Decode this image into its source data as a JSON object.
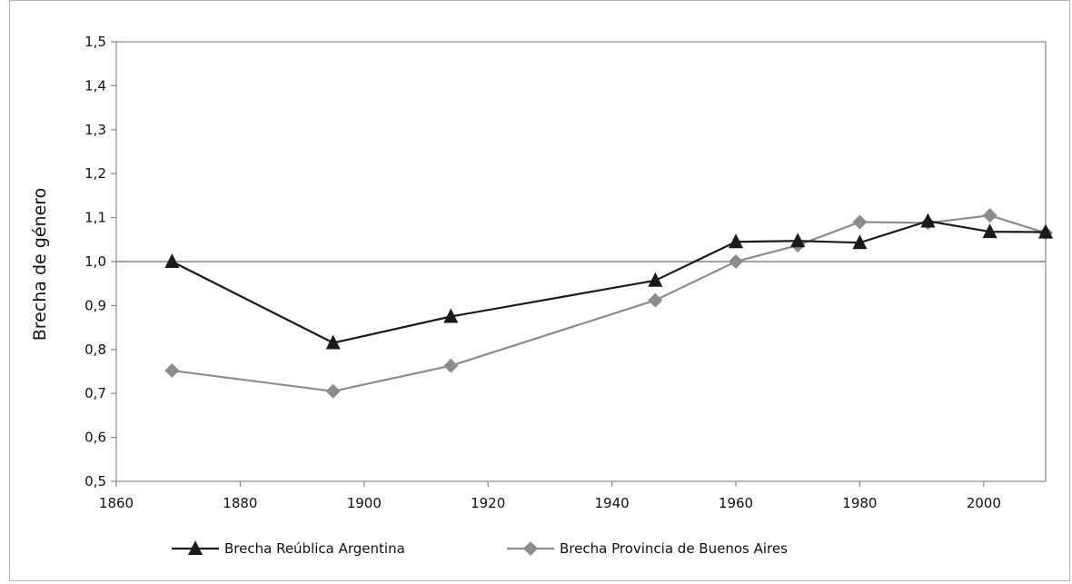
{
  "chart_data": {
    "type": "line",
    "title": "",
    "xlabel": "",
    "ylabel": "Brecha de género",
    "xlim": [
      1860,
      2010
    ],
    "ylim": [
      0.5,
      1.5
    ],
    "xticks": [
      "1860",
      "1880",
      "1900",
      "1920",
      "1940",
      "1960",
      "1980",
      "2000"
    ],
    "yticks": [
      "0,5",
      "0,6",
      "0,7",
      "0,8",
      "0,9",
      "1,0",
      "1,1",
      "1,2",
      "1,3",
      "1,4",
      "1,5"
    ],
    "reference_line": 1.0,
    "grid": false,
    "legend_position": "bottom",
    "series": [
      {
        "name": "Brecha Reública Argentina",
        "color": "#1a1a1a",
        "marker": "triangle",
        "x": [
          1869,
          1895,
          1914,
          1947,
          1960,
          1970,
          1980,
          1991,
          2001,
          2010
        ],
        "values": [
          1.0,
          0.815,
          0.875,
          0.957,
          1.045,
          1.047,
          1.043,
          1.092,
          1.068,
          1.067
        ]
      },
      {
        "name": "Brecha Provincia de Buenos Aires",
        "color": "#8c8c8c",
        "marker": "diamond",
        "x": [
          1869,
          1895,
          1914,
          1947,
          1960,
          1970,
          1980,
          1991,
          2001,
          2010
        ],
        "values": [
          0.752,
          0.705,
          0.763,
          0.912,
          1.0,
          1.037,
          1.09,
          1.088,
          1.105,
          1.065
        ]
      }
    ]
  }
}
